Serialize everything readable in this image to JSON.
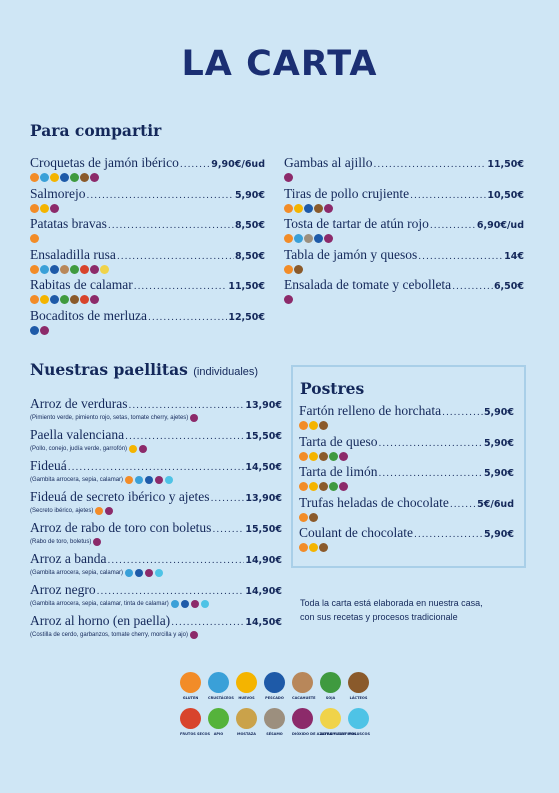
{
  "title": "LA CARTA",
  "allergen_colors": {
    "gluten": "#f28c28",
    "crustaceos": "#3aa0d8",
    "huevos": "#f4b400",
    "pescado": "#1e5aa8",
    "cacahuete": "#b8875a",
    "soja": "#3f9a3f",
    "lacteos": "#8a5a2b",
    "frutos_secos": "#d8442c",
    "apio": "#55b33b",
    "mostaza": "#caa24a",
    "sesamo": "#9c8f7e",
    "sulfitos": "#8c2a6a",
    "altramuces": "#f0d34a",
    "moluscos": "#4ec3e6"
  },
  "compartir": {
    "title": "Para compartir",
    "left": [
      {
        "name": "Croquetas de jamón ibérico",
        "price": "9,90€/6ud",
        "icons": [
          "gluten",
          "crustaceos",
          "huevos",
          "pescado",
          "soja",
          "lacteos",
          "sulfitos"
        ]
      },
      {
        "name": "Salmorejo",
        "price": "5,90€",
        "icons": [
          "gluten",
          "huevos",
          "sulfitos"
        ]
      },
      {
        "name": "Patatas bravas",
        "price": "8,50€",
        "icons": [
          "gluten"
        ]
      },
      {
        "name": "Ensaladilla rusa",
        "price": "8,50€",
        "icons": [
          "gluten",
          "crustaceos",
          "pescado",
          "cacahuete",
          "soja",
          "frutos_secos",
          "sulfitos",
          "altramuces"
        ]
      },
      {
        "name": "Rabitas de calamar",
        "price": "11,50€",
        "icons": [
          "gluten",
          "huevos",
          "pescado",
          "soja",
          "lacteos",
          "frutos_secos",
          "sulfitos"
        ]
      },
      {
        "name": "Bocaditos de merluza",
        "price": "12,50€",
        "icons": [
          "pescado",
          "sulfitos"
        ]
      }
    ],
    "right": [
      {
        "name": "Gambas al ajillo",
        "price": "11,50€",
        "icons": [
          "sulfitos"
        ]
      },
      {
        "name": "Tiras de pollo crujiente",
        "price": "10,50€",
        "icons": [
          "gluten",
          "huevos",
          "pescado",
          "lacteos",
          "sulfitos"
        ]
      },
      {
        "name": "Tosta de tartar de atún rojo",
        "price": "6,90€/ud",
        "icons": [
          "gluten",
          "crustaceos",
          "sesamo",
          "pescado",
          "sulfitos"
        ]
      },
      {
        "name": "Tabla de jamón y quesos",
        "price": "14€",
        "icons": [
          "gluten",
          "lacteos"
        ]
      },
      {
        "name": "Ensalada de tomate y cebolleta",
        "price": "6,50€",
        "icons": [
          "sulfitos"
        ]
      }
    ]
  },
  "paellitas": {
    "title": "Nuestras paellitas",
    "subtitle": "(individuales)",
    "items": [
      {
        "name": "Arroz de verduras",
        "price": "13,90€",
        "desc": "(Pimiento verde, pimiento rojo, setas, tomate cherry, ajetes)",
        "icons": [
          "sulfitos"
        ]
      },
      {
        "name": "Paella valenciana",
        "price": "15,50€",
        "desc": "(Pollo, conejo, judía verde, garrofón)",
        "icons": [
          "huevos",
          "sulfitos"
        ]
      },
      {
        "name": "Fideuá",
        "price": "14,50€",
        "desc": "(Gambita arrocera, sepia, calamar)",
        "icons": [
          "gluten",
          "crustaceos",
          "pescado",
          "sulfitos",
          "moluscos"
        ]
      },
      {
        "name": "Fideuá de secreto ibérico y ajetes",
        "price": "13,90€",
        "desc": "(Secreto ibérico, ajetes)",
        "icons": [
          "gluten",
          "sulfitos"
        ]
      },
      {
        "name": "Arroz de rabo de toro con boletus",
        "price": "15,50€",
        "desc": "(Rabo de toro, boletus)",
        "icons": [
          "sulfitos"
        ]
      },
      {
        "name": "Arroz a banda",
        "price": "14,90€",
        "desc": "(Gambita arrocera, sepia, calamar)",
        "icons": [
          "crustaceos",
          "pescado",
          "sulfitos",
          "moluscos"
        ]
      },
      {
        "name": "Arroz negro",
        "price": "14,90€",
        "desc": "(Gambita arrocera, sepia, calamar, tinta de calamar)",
        "icons": [
          "crustaceos",
          "pescado",
          "sulfitos",
          "moluscos"
        ]
      },
      {
        "name": "Arroz al horno (en paella)",
        "price": "14,50€",
        "desc": "(Costilla de cerdo, garbanzos, tomate cherry, morcilla y ajo)",
        "icons": [
          "sulfitos"
        ]
      }
    ]
  },
  "postres": {
    "title": "Postres",
    "items": [
      {
        "name": "Fartón relleno de horchata",
        "price": "5,90€",
        "icons": [
          "gluten",
          "huevos",
          "lacteos"
        ]
      },
      {
        "name": "Tarta de queso",
        "price": "5,90€",
        "icons": [
          "gluten",
          "huevos",
          "lacteos",
          "soja",
          "sulfitos"
        ]
      },
      {
        "name": "Tarta de limón",
        "price": "5,90€",
        "icons": [
          "gluten",
          "huevos",
          "lacteos",
          "soja",
          "sulfitos"
        ]
      },
      {
        "name": "Trufas heladas de chocolate",
        "price": "5€/6ud",
        "icons": [
          "gluten",
          "lacteos"
        ]
      },
      {
        "name": "Coulant de chocolate",
        "price": "5,90€",
        "icons": [
          "gluten",
          "huevos",
          "lacteos"
        ]
      }
    ]
  },
  "note": {
    "line1": "Toda la carta está elaborada en nuestra casa,",
    "line2": "con sus recetas y procesos tradicionale"
  },
  "legend": {
    "row1": [
      {
        "key": "gluten",
        "label": "GLUTEN"
      },
      {
        "key": "crustaceos",
        "label": "CRUSTÁCEOS"
      },
      {
        "key": "huevos",
        "label": "HUEVOS"
      },
      {
        "key": "pescado",
        "label": "PESCADO"
      },
      {
        "key": "cacahuete",
        "label": "CACAHUETE"
      },
      {
        "key": "soja",
        "label": "SOJA"
      },
      {
        "key": "lacteos",
        "label": "LÁCTEOS"
      }
    ],
    "row2": [
      {
        "key": "frutos_secos",
        "label": "FRUTOS SECOS"
      },
      {
        "key": "apio",
        "label": "APIO"
      },
      {
        "key": "mostaza",
        "label": "MOSTAZA"
      },
      {
        "key": "sesamo",
        "label": "SÉSAMO"
      },
      {
        "key": "sulfitos",
        "label": "DIÓXIDO DE AZUFRE Y SULFITOS"
      },
      {
        "key": "altramuces",
        "label": "ALTRAMUCES"
      },
      {
        "key": "moluscos",
        "label": "MOLUSCOS"
      }
    ]
  }
}
